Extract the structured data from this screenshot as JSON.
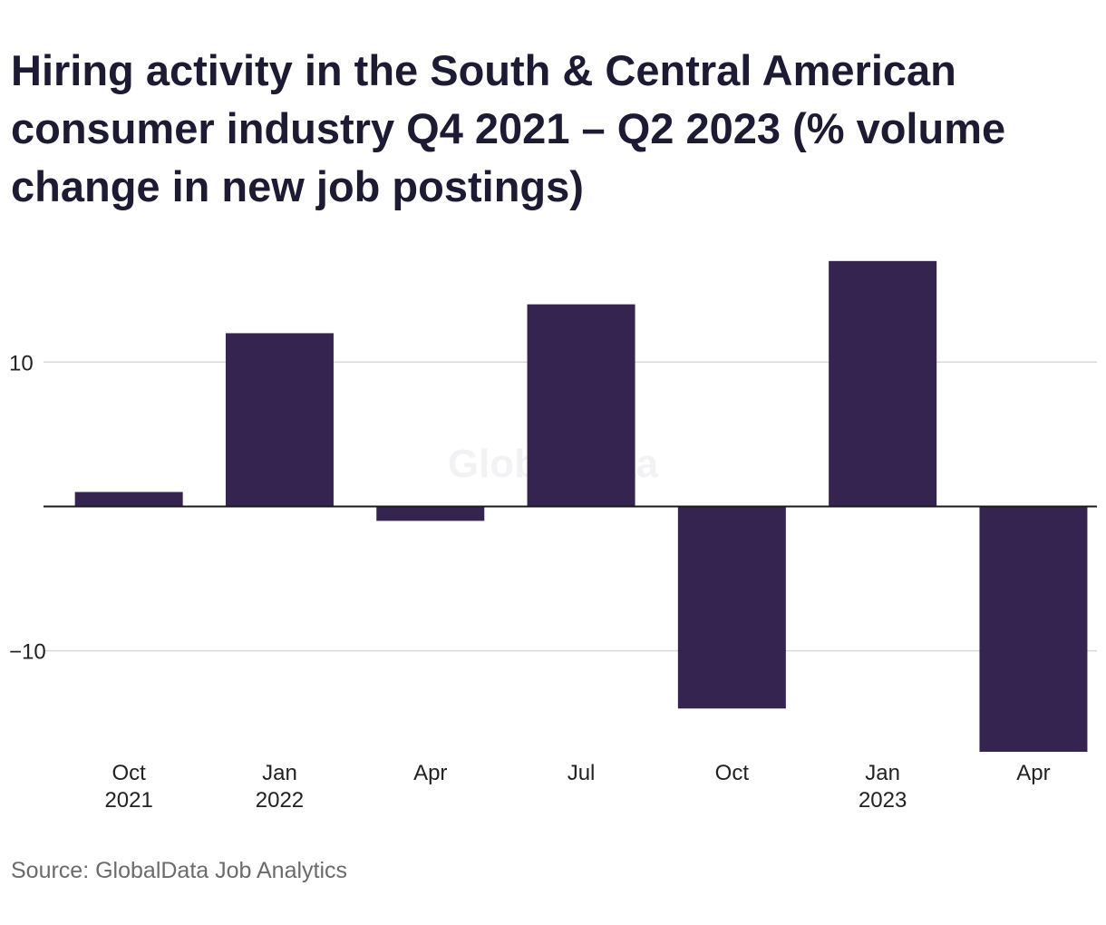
{
  "chart_data": {
    "type": "bar",
    "title": "Hiring activity in the South & Central American consumer industry Q4 2021 – Q2 2023 (% volume change in new job postings)",
    "categories": [
      [
        "Oct",
        "2021"
      ],
      [
        "Jan",
        "2022"
      ],
      [
        "Apr",
        ""
      ],
      [
        "Jul",
        ""
      ],
      [
        "Oct",
        ""
      ],
      [
        "Jan",
        "2023"
      ],
      [
        "Apr",
        ""
      ]
    ],
    "values": [
      1.0,
      12.0,
      -1.0,
      14.0,
      -14.0,
      17.0,
      -17.0
    ],
    "yticks": [
      {
        "value": 10,
        "label": "10"
      },
      {
        "value": -10,
        "label": "−10"
      }
    ],
    "ylim": [
      -17.5,
      19
    ],
    "xlabel": "",
    "ylabel": "",
    "grid": true,
    "bar_color": "#35244f",
    "watermark": "GlobalData"
  },
  "source": "Source: GlobalData Job Analytics"
}
